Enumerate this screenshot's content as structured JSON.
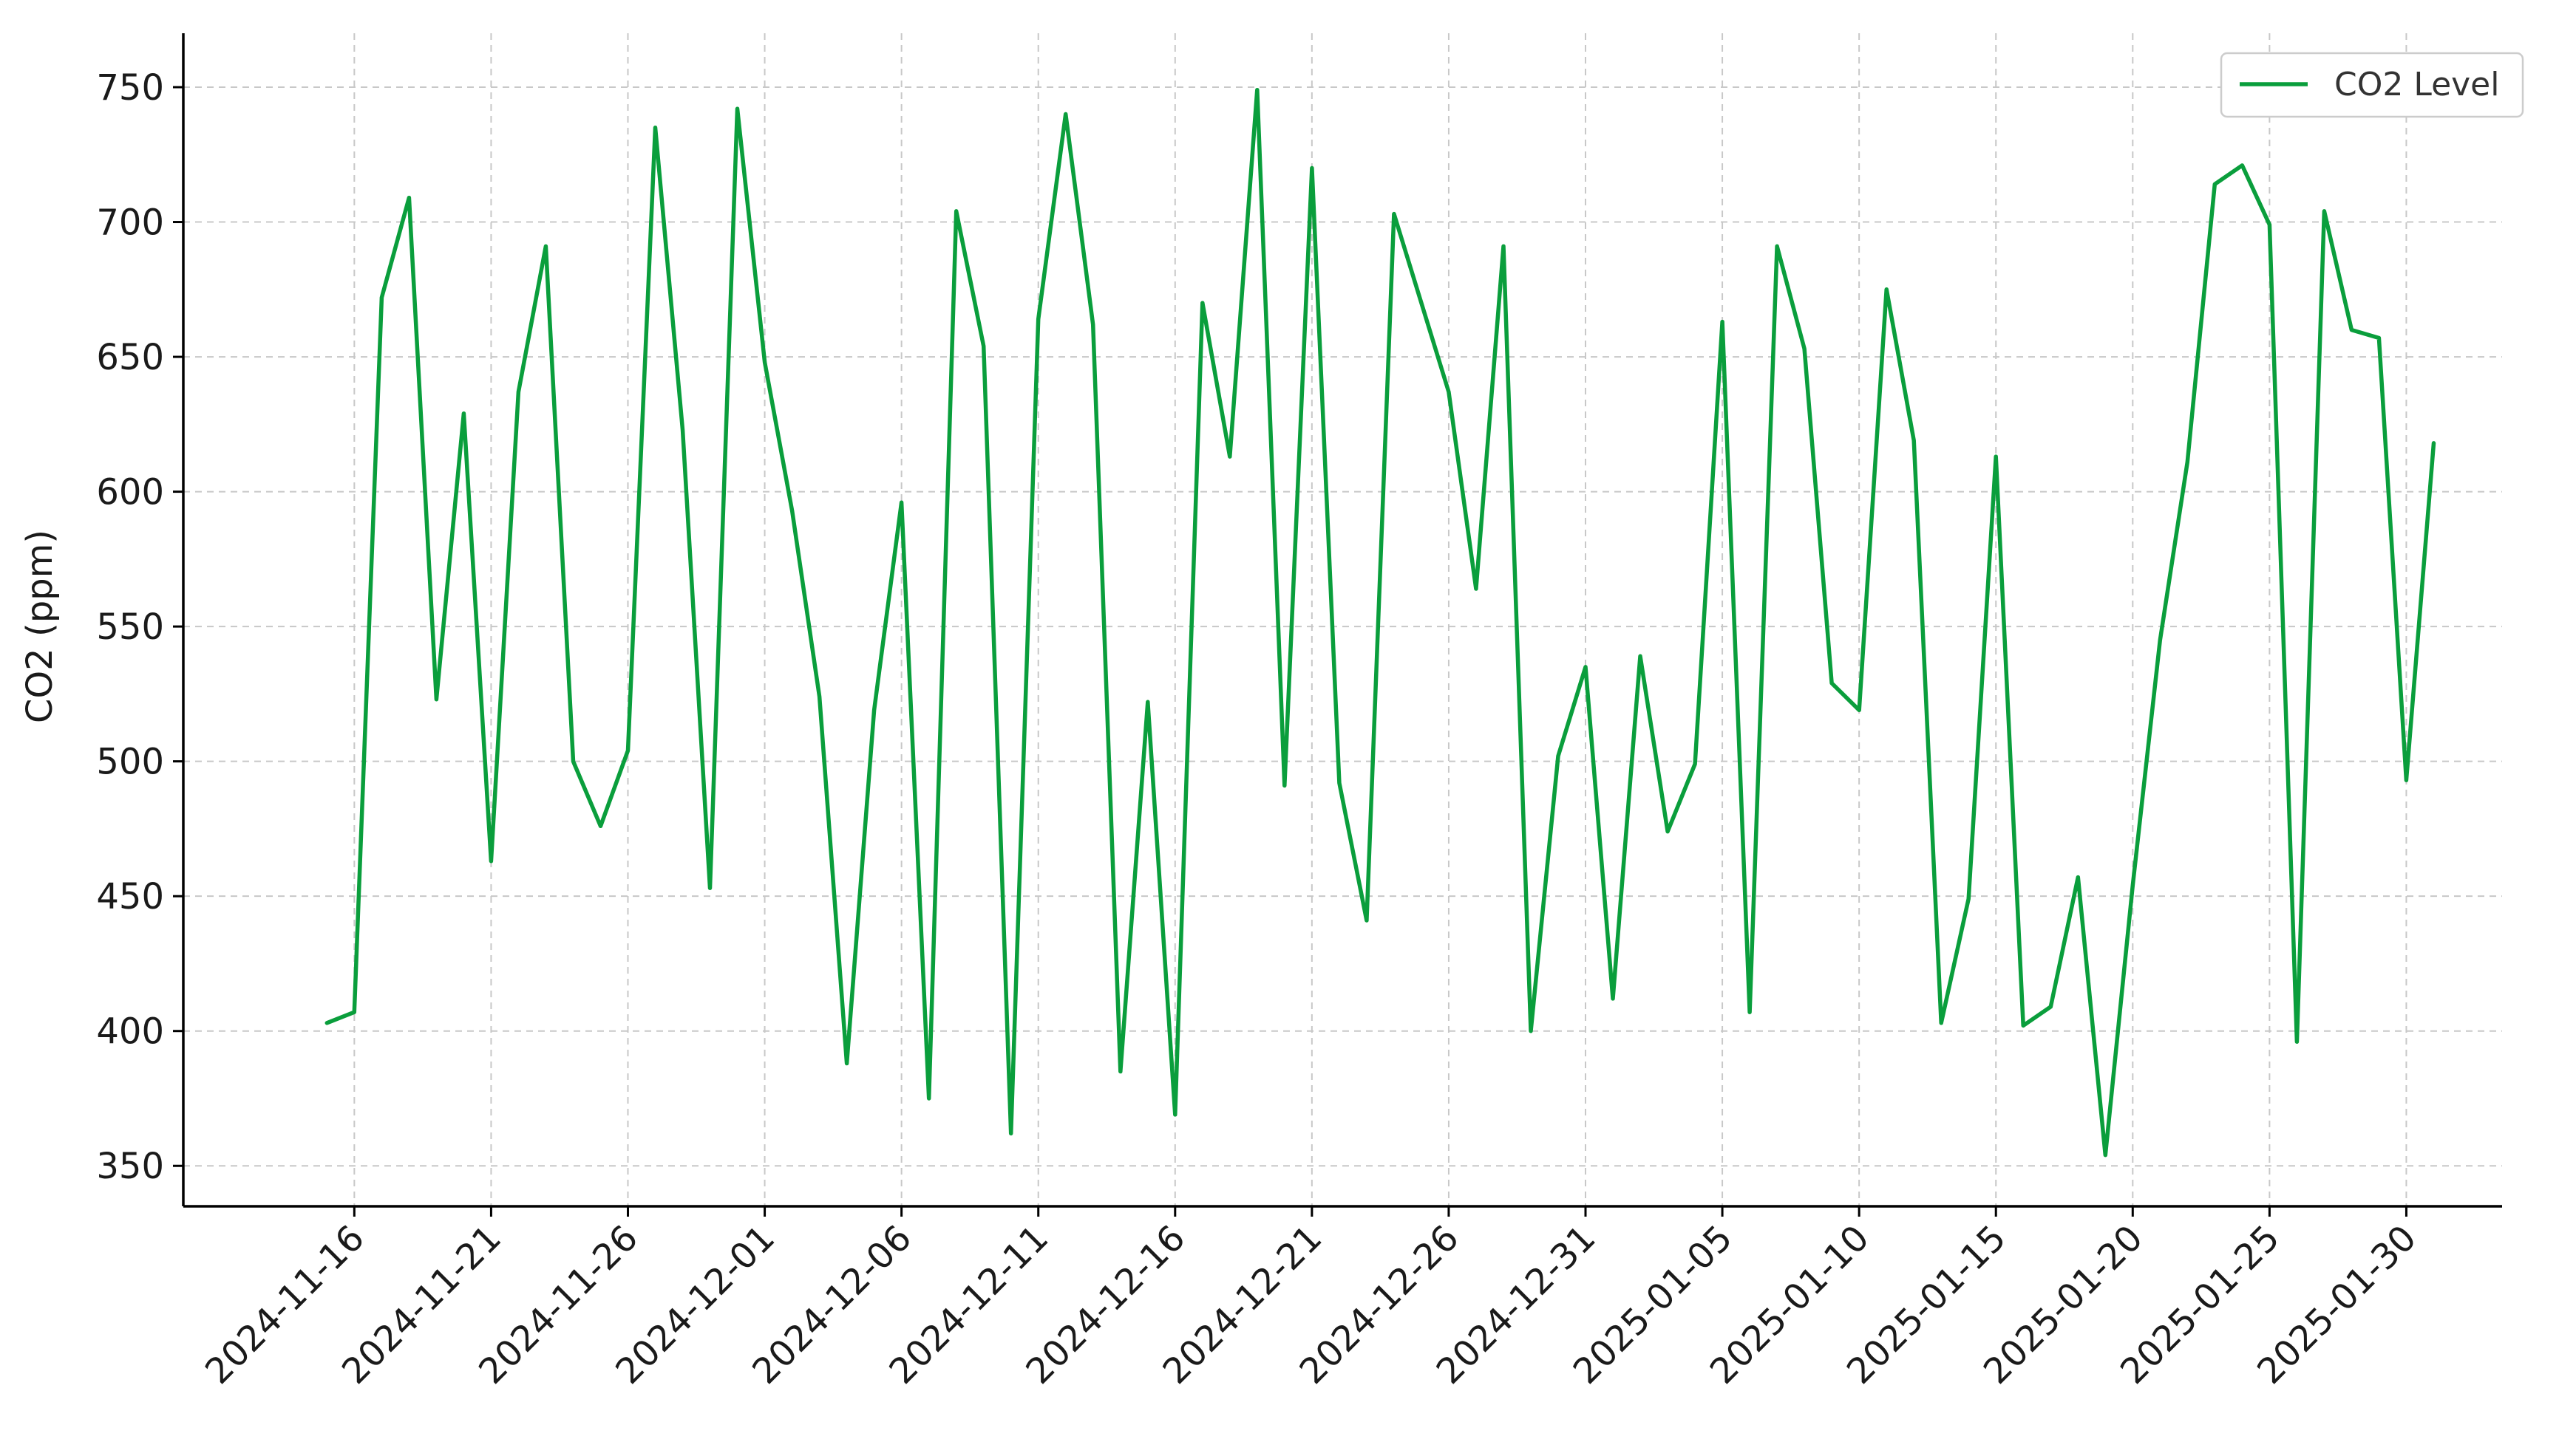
{
  "chart_data": {
    "type": "line",
    "ylabel": "CO2 (ppm)",
    "xlabel": "",
    "ylim": [
      335,
      770
    ],
    "xlim": [
      "2024-11-09T18:00",
      "2025-02-02T12:00"
    ],
    "yticks": [
      350,
      400,
      450,
      500,
      550,
      600,
      650,
      700,
      750
    ],
    "xticks": [
      "2024-11-16",
      "2024-11-21",
      "2024-11-26",
      "2024-12-01",
      "2024-12-06",
      "2024-12-11",
      "2024-12-16",
      "2024-12-21",
      "2024-12-26",
      "2024-12-31",
      "2025-01-05",
      "2025-01-10",
      "2025-01-15",
      "2025-01-20",
      "2025-01-25",
      "2025-01-30"
    ],
    "grid": true,
    "legend_position": "top-right",
    "series": [
      {
        "name": "CO2 Level",
        "color": "#0a9e3c",
        "x": [
          "2024-11-15",
          "2024-11-16",
          "2024-11-17",
          "2024-11-18",
          "2024-11-19",
          "2024-11-20",
          "2024-11-21",
          "2024-11-22",
          "2024-11-23",
          "2024-11-24",
          "2024-11-25",
          "2024-11-26",
          "2024-11-27",
          "2024-11-28",
          "2024-11-29",
          "2024-11-30",
          "2024-12-01",
          "2024-12-02",
          "2024-12-03",
          "2024-12-04",
          "2024-12-05",
          "2024-12-06",
          "2024-12-07",
          "2024-12-08",
          "2024-12-09",
          "2024-12-10",
          "2024-12-11",
          "2024-12-12",
          "2024-12-13",
          "2024-12-14",
          "2024-12-15",
          "2024-12-16",
          "2024-12-17",
          "2024-12-18",
          "2024-12-19",
          "2024-12-20",
          "2024-12-21",
          "2024-12-22",
          "2024-12-23",
          "2024-12-24",
          "2024-12-25",
          "2024-12-26",
          "2024-12-27",
          "2024-12-28",
          "2024-12-29",
          "2024-12-30",
          "2024-12-31",
          "2025-01-01",
          "2025-01-02",
          "2025-01-03",
          "2025-01-04",
          "2025-01-05",
          "2025-01-06",
          "2025-01-07",
          "2025-01-08",
          "2025-01-09",
          "2025-01-10",
          "2025-01-11",
          "2025-01-12",
          "2025-01-13",
          "2025-01-14",
          "2025-01-15",
          "2025-01-16",
          "2025-01-17",
          "2025-01-18",
          "2025-01-19",
          "2025-01-20",
          "2025-01-21",
          "2025-01-22",
          "2025-01-23",
          "2025-01-24",
          "2025-01-25",
          "2025-01-26",
          "2025-01-27",
          "2025-01-28",
          "2025-01-29",
          "2025-01-30",
          "2025-01-31",
          "2025-02-01"
        ],
        "values": [
          403,
          407,
          672,
          709,
          523,
          629,
          463,
          637,
          691,
          500,
          476,
          504,
          735,
          623,
          453,
          742,
          648,
          593,
          524,
          388,
          519,
          596,
          375,
          704,
          654,
          362,
          664,
          740,
          662,
          385,
          522,
          369,
          670,
          613,
          749,
          491,
          720,
          492,
          441,
          703,
          670,
          637,
          564,
          691,
          400,
          502,
          535,
          412,
          539,
          474,
          499,
          663,
          407,
          691,
          653,
          529,
          519,
          675,
          619,
          403,
          449,
          613,
          402,
          409,
          457,
          354,
          454,
          545,
          611,
          714,
          721,
          699,
          396,
          704,
          660,
          657,
          493,
          618,
          null
        ]
      }
    ]
  }
}
